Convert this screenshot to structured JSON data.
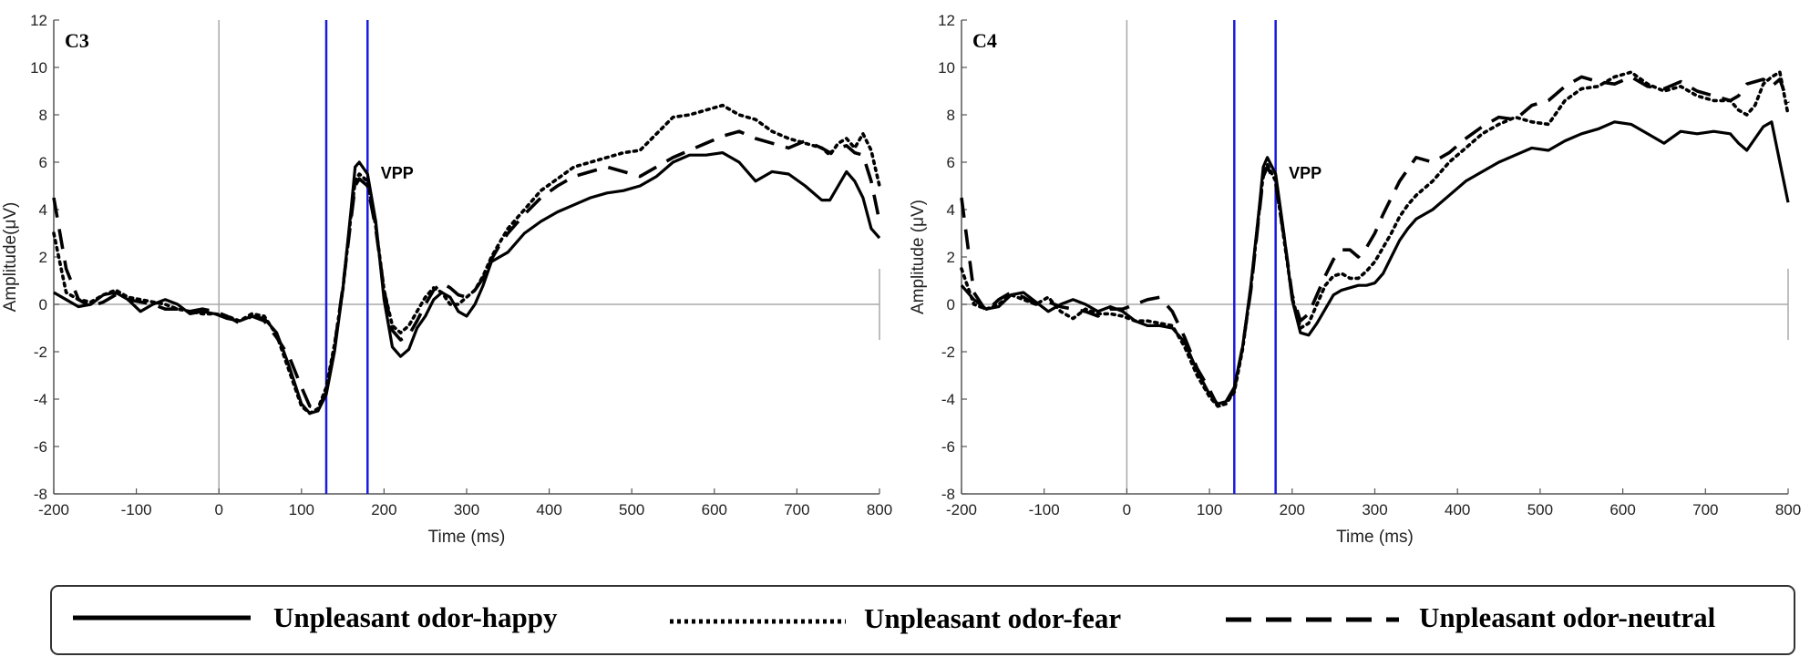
{
  "chart_data": [
    {
      "type": "line",
      "title": "C3",
      "xlabel": "Time (ms)",
      "ylabel": "Amplitude(μV)",
      "xlim": [
        -200,
        800
      ],
      "ylim": [
        12,
        -8
      ],
      "y_inverted": true,
      "xticks": [
        -200,
        -100,
        0,
        100,
        200,
        300,
        400,
        500,
        600,
        700,
        800
      ],
      "yticks": [
        -8,
        -6,
        -4,
        -2,
        0,
        2,
        4,
        6,
        8,
        10,
        12
      ],
      "vlines": [
        130,
        180
      ],
      "vline_color": "#1a1adc",
      "annotation": {
        "text": "VPP",
        "x": 196,
        "y": 5.3
      },
      "series": [
        {
          "name": "Unpleasant odor-happy",
          "style": "solid",
          "x": [
            -200,
            -185,
            -170,
            -155,
            -140,
            -125,
            -110,
            -95,
            -80,
            -65,
            -50,
            -35,
            -20,
            -5,
            10,
            25,
            40,
            55,
            70,
            85,
            100,
            110,
            120,
            130,
            140,
            150,
            160,
            165,
            170,
            180,
            190,
            200,
            210,
            220,
            230,
            240,
            250,
            260,
            270,
            280,
            290,
            300,
            310,
            320,
            330,
            340,
            350,
            370,
            390,
            410,
            430,
            450,
            470,
            490,
            510,
            530,
            550,
            570,
            590,
            610,
            630,
            650,
            670,
            690,
            710,
            730,
            740,
            750,
            760,
            770,
            780,
            790,
            800
          ],
          "y": [
            0.5,
            0.2,
            -0.1,
            0,
            0.4,
            0.5,
            0.2,
            -0.3,
            0,
            0.2,
            0,
            -0.4,
            -0.3,
            -0.4,
            -0.6,
            -0.7,
            -0.5,
            -0.6,
            -1.2,
            -2.6,
            -4.2,
            -4.6,
            -4.5,
            -3.8,
            -2,
            0.6,
            4.0,
            5.8,
            6.0,
            5.5,
            3.5,
            0.2,
            -1.8,
            -2.2,
            -1.9,
            -1.0,
            -0.5,
            0.2,
            0.5,
            0.3,
            -0.3,
            -0.5,
            0,
            0.8,
            1.8,
            2.0,
            2.2,
            3.0,
            3.5,
            3.9,
            4.2,
            4.5,
            4.7,
            4.8,
            5.0,
            5.4,
            6.0,
            6.3,
            6.3,
            6.4,
            6.0,
            5.2,
            5.6,
            5.5,
            5.0,
            4.4,
            4.4,
            5.0,
            5.6,
            5.2,
            4.5,
            3.2,
            2.8
          ]
        },
        {
          "name": "Unpleasant odor-fear",
          "style": "dotted",
          "x": [
            -200,
            -185,
            -170,
            -155,
            -140,
            -125,
            -110,
            -95,
            -80,
            -65,
            -50,
            -35,
            -20,
            -5,
            10,
            25,
            40,
            55,
            70,
            85,
            100,
            110,
            120,
            130,
            140,
            150,
            160,
            165,
            170,
            180,
            190,
            200,
            210,
            220,
            230,
            240,
            250,
            260,
            270,
            280,
            290,
            300,
            310,
            320,
            330,
            340,
            350,
            370,
            390,
            410,
            430,
            450,
            470,
            490,
            510,
            530,
            550,
            570,
            590,
            610,
            630,
            650,
            670,
            690,
            710,
            730,
            740,
            750,
            760,
            770,
            780,
            790,
            800
          ],
          "y": [
            3.0,
            0.5,
            0.2,
            0.1,
            0.4,
            0.6,
            0.3,
            0.2,
            0.1,
            0,
            -0.2,
            -0.3,
            -0.4,
            -0.4,
            -0.5,
            -0.7,
            -0.4,
            -0.5,
            -1.3,
            -2.8,
            -4.3,
            -4.6,
            -4.4,
            -3.5,
            -1.7,
            0.6,
            3.8,
            5.2,
            5.5,
            5.2,
            3.3,
            0.6,
            -0.9,
            -1.2,
            -0.9,
            -0.3,
            0.3,
            0.7,
            0.5,
            0,
            0,
            0.3,
            0.6,
            1.2,
            2.0,
            2.6,
            3.2,
            4.0,
            4.8,
            5.3,
            5.8,
            6.0,
            6.2,
            6.4,
            6.5,
            7.2,
            7.9,
            8.0,
            8.2,
            8.4,
            8.0,
            7.8,
            7.3,
            7.0,
            6.8,
            6.6,
            6.3,
            6.8,
            7.0,
            6.6,
            7.2,
            6.5,
            5.0
          ]
        },
        {
          "name": "Unpleasant odor-neutral",
          "style": "dashed",
          "x": [
            -200,
            -185,
            -170,
            -155,
            -140,
            -125,
            -110,
            -95,
            -80,
            -65,
            -50,
            -35,
            -20,
            -5,
            10,
            25,
            40,
            55,
            70,
            85,
            100,
            110,
            120,
            130,
            140,
            150,
            160,
            165,
            170,
            180,
            190,
            200,
            210,
            220,
            230,
            240,
            250,
            260,
            270,
            280,
            290,
            300,
            310,
            320,
            330,
            340,
            350,
            370,
            390,
            410,
            430,
            450,
            470,
            490,
            510,
            530,
            550,
            570,
            590,
            610,
            630,
            650,
            670,
            690,
            710,
            730,
            740,
            750,
            760,
            770,
            780,
            790,
            800
          ],
          "y": [
            4.5,
            1.5,
            0.2,
            -0.1,
            0.1,
            0.4,
            0.2,
            0.1,
            0,
            -0.2,
            -0.2,
            -0.3,
            -0.2,
            -0.3,
            -0.5,
            -0.8,
            -0.5,
            -0.7,
            -1.4,
            -2.2,
            -3.5,
            -4.3,
            -4.4,
            -3.7,
            -1.8,
            0.7,
            3.6,
            5.0,
            5.3,
            5.0,
            3.2,
            0.6,
            -1.1,
            -1.5,
            -1.3,
            -0.7,
            0,
            0.6,
            0.9,
            0.7,
            0.4,
            0.3,
            0.6,
            1.1,
            1.9,
            2.5,
            3.0,
            3.8,
            4.5,
            5.0,
            5.4,
            5.6,
            5.8,
            5.6,
            5.4,
            5.8,
            6.2,
            6.5,
            6.8,
            7.1,
            7.3,
            7.0,
            6.8,
            6.6,
            6.9,
            6.6,
            6.4,
            6.6,
            6.7,
            6.4,
            6.3,
            5.2,
            3.5
          ]
        }
      ]
    },
    {
      "type": "line",
      "title": "C4",
      "xlabel": "Time (ms)",
      "ylabel": "Amplitude (μV)",
      "xlim": [
        -200,
        800
      ],
      "ylim": [
        12,
        -8
      ],
      "y_inverted": true,
      "xticks": [
        -200,
        -100,
        0,
        100,
        200,
        300,
        400,
        500,
        600,
        700,
        800
      ],
      "yticks": [
        -8,
        -6,
        -4,
        -2,
        0,
        2,
        4,
        6,
        8,
        10,
        12
      ],
      "vlines": [
        130,
        180
      ],
      "vline_color": "#1a1adc",
      "annotation": {
        "text": "VPP",
        "x": 196,
        "y": 5.3
      },
      "series": [
        {
          "name": "Unpleasant odor-happy",
          "style": "solid",
          "x": [
            -200,
            -185,
            -170,
            -155,
            -140,
            -125,
            -110,
            -95,
            -80,
            -65,
            -50,
            -35,
            -20,
            -5,
            10,
            25,
            40,
            55,
            70,
            85,
            100,
            110,
            120,
            130,
            140,
            150,
            160,
            165,
            170,
            180,
            190,
            200,
            210,
            220,
            230,
            240,
            250,
            260,
            270,
            280,
            290,
            300,
            310,
            320,
            330,
            340,
            350,
            370,
            390,
            410,
            430,
            450,
            470,
            490,
            510,
            530,
            550,
            570,
            590,
            610,
            630,
            650,
            670,
            690,
            710,
            730,
            740,
            750,
            760,
            770,
            780,
            790,
            800
          ],
          "y": [
            0.8,
            0.2,
            -0.2,
            -0.1,
            0.4,
            0.5,
            0.1,
            -0.3,
            0,
            0.2,
            0,
            -0.3,
            -0.1,
            -0.3,
            -0.7,
            -0.9,
            -0.9,
            -1.0,
            -1.6,
            -2.8,
            -3.8,
            -4.2,
            -4.1,
            -3.5,
            -1.8,
            0.8,
            4.0,
            5.8,
            6.2,
            5.5,
            3.0,
            0.2,
            -1.2,
            -1.3,
            -0.8,
            -0.2,
            0.4,
            0.6,
            0.7,
            0.8,
            0.8,
            0.9,
            1.3,
            2.0,
            2.7,
            3.2,
            3.6,
            4.0,
            4.6,
            5.2,
            5.6,
            6.0,
            6.3,
            6.6,
            6.5,
            6.9,
            7.2,
            7.4,
            7.7,
            7.6,
            7.2,
            6.8,
            7.3,
            7.2,
            7.3,
            7.2,
            6.8,
            6.5,
            7.0,
            7.5,
            7.7,
            6.0,
            4.3
          ]
        },
        {
          "name": "Unpleasant odor-fear",
          "style": "dotted",
          "x": [
            -200,
            -185,
            -170,
            -155,
            -140,
            -125,
            -110,
            -95,
            -80,
            -65,
            -50,
            -35,
            -20,
            -5,
            10,
            25,
            40,
            55,
            70,
            85,
            100,
            110,
            120,
            130,
            140,
            150,
            160,
            165,
            170,
            180,
            190,
            200,
            210,
            220,
            230,
            240,
            250,
            260,
            270,
            280,
            290,
            300,
            310,
            320,
            330,
            340,
            350,
            370,
            390,
            410,
            430,
            450,
            470,
            490,
            510,
            530,
            550,
            570,
            590,
            610,
            630,
            650,
            670,
            690,
            710,
            730,
            740,
            750,
            760,
            770,
            780,
            790,
            800
          ],
          "y": [
            1.5,
            0,
            -0.2,
            0,
            0.4,
            0.2,
            0,
            0.3,
            -0.3,
            -0.6,
            -0.2,
            -0.4,
            -0.4,
            -0.5,
            -0.7,
            -0.7,
            -0.8,
            -0.9,
            -1.8,
            -3.0,
            -3.9,
            -4.3,
            -4.2,
            -3.7,
            -1.9,
            0.7,
            3.9,
            5.5,
            5.9,
            5.2,
            2.8,
            0.3,
            -1.0,
            -0.8,
            0,
            0.8,
            1.2,
            1.3,
            1.1,
            1.1,
            1.4,
            1.8,
            2.4,
            3.0,
            3.7,
            4.2,
            4.6,
            5.2,
            6.0,
            6.6,
            7.2,
            7.6,
            7.9,
            7.7,
            7.6,
            8.6,
            9.1,
            9.2,
            9.6,
            9.8,
            9.3,
            9.0,
            9.2,
            8.8,
            8.6,
            8.6,
            8.2,
            8.0,
            8.4,
            9.3,
            9.6,
            9.8,
            8.0
          ]
        },
        {
          "name": "Unpleasant odor-neutral",
          "style": "dashed",
          "x": [
            -200,
            -185,
            -170,
            -155,
            -140,
            -125,
            -110,
            -95,
            -80,
            -65,
            -50,
            -35,
            -20,
            -5,
            10,
            25,
            40,
            55,
            70,
            85,
            100,
            110,
            120,
            130,
            140,
            150,
            160,
            165,
            170,
            180,
            190,
            200,
            210,
            220,
            230,
            240,
            250,
            260,
            270,
            280,
            290,
            300,
            310,
            320,
            330,
            340,
            350,
            370,
            390,
            410,
            430,
            450,
            470,
            490,
            510,
            530,
            550,
            570,
            590,
            610,
            630,
            650,
            670,
            690,
            710,
            730,
            740,
            750,
            760,
            770,
            780,
            790,
            800
          ],
          "y": [
            4.5,
            0.5,
            -0.3,
            0.2,
            0.5,
            0.3,
            0,
            0.1,
            -0.1,
            -0.2,
            -0.3,
            -0.5,
            -0.2,
            -0.2,
            0,
            0.2,
            0.3,
            -0.3,
            -1.4,
            -2.7,
            -3.6,
            -4.3,
            -4.2,
            -3.6,
            -1.8,
            0.6,
            3.8,
            5.4,
            5.8,
            5.1,
            2.9,
            0.4,
            -0.7,
            -0.4,
            0.4,
            1.2,
            1.9,
            2.3,
            2.3,
            2.0,
            2.4,
            3.0,
            3.8,
            4.5,
            5.2,
            5.7,
            6.2,
            6.0,
            6.4,
            7.0,
            7.5,
            7.9,
            7.8,
            8.4,
            8.6,
            9.2,
            9.6,
            9.4,
            9.3,
            9.6,
            9.2,
            9.1,
            9.4,
            9.0,
            8.8,
            8.6,
            8.8,
            9.3,
            9.4,
            9.5,
            9.2,
            9.5,
            8.5
          ]
        }
      ]
    }
  ],
  "legend": {
    "entries": [
      {
        "label": "Unpleasant odor-happy",
        "style": "solid"
      },
      {
        "label": "Unpleasant odor-fear",
        "style": "dotted"
      },
      {
        "label": "Unpleasant odor-neutral",
        "style": "dashed"
      }
    ]
  }
}
